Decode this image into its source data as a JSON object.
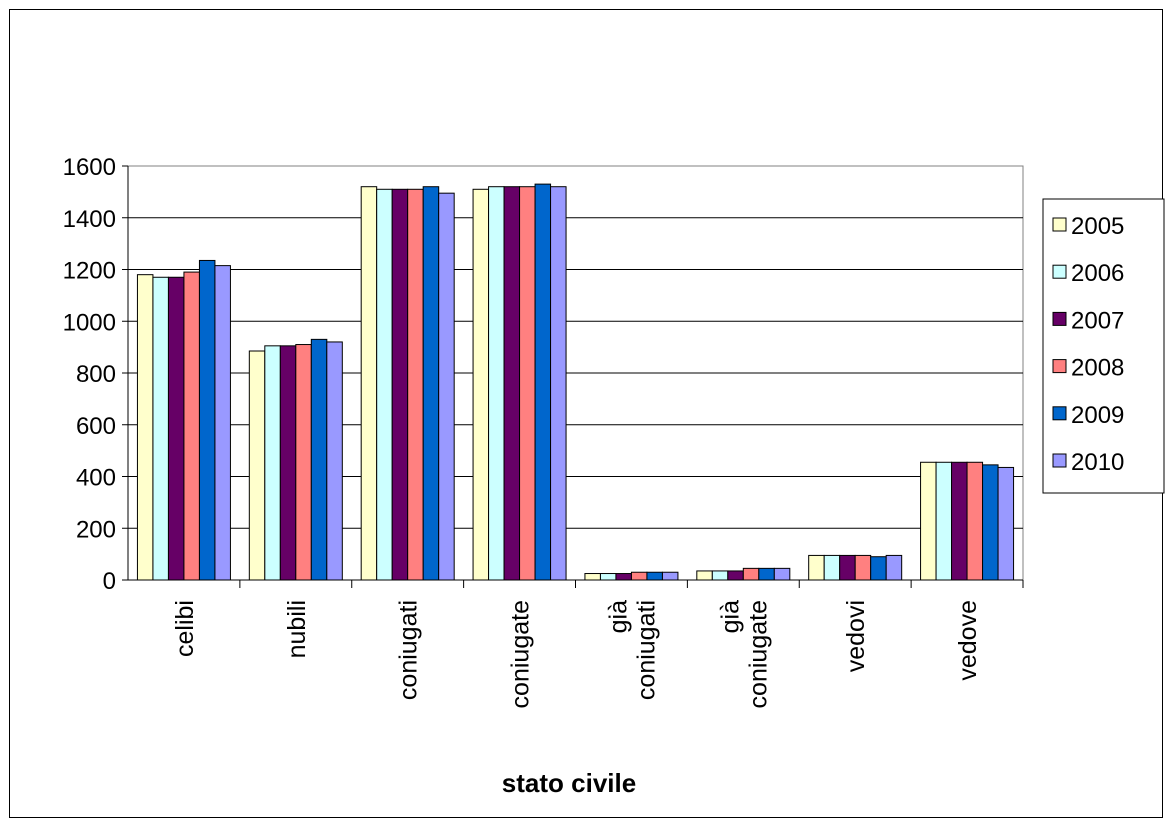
{
  "chart_data": {
    "type": "bar",
    "title": "",
    "xlabel": "stato civile",
    "ylabel": "",
    "ylim": [
      0,
      1600
    ],
    "yticks": [
      "0",
      "200",
      "400",
      "600",
      "800",
      "1000",
      "1200",
      "1400",
      "1600"
    ],
    "grid": true,
    "legend_position": "right",
    "categories": [
      [
        "celibi"
      ],
      [
        "nubili"
      ],
      [
        "coniugati"
      ],
      [
        "coniugate"
      ],
      [
        "già",
        "coniugati"
      ],
      [
        "già",
        "coniugate"
      ],
      [
        "vedovi"
      ],
      [
        "vedove"
      ]
    ],
    "series": [
      {
        "name": "2005",
        "color": "#FFFFCC",
        "values": [
          1180,
          885,
          1520,
          1510,
          25,
          35,
          95,
          455
        ]
      },
      {
        "name": "2006",
        "color": "#CCFFFF",
        "values": [
          1170,
          905,
          1510,
          1520,
          25,
          35,
          95,
          455
        ]
      },
      {
        "name": "2007",
        "color": "#660066",
        "values": [
          1170,
          905,
          1510,
          1520,
          25,
          35,
          95,
          455
        ]
      },
      {
        "name": "2008",
        "color": "#FF8080",
        "values": [
          1190,
          910,
          1510,
          1520,
          30,
          45,
          95,
          455
        ]
      },
      {
        "name": "2009",
        "color": "#0066CC",
        "values": [
          1235,
          930,
          1520,
          1530,
          30,
          45,
          90,
          445
        ]
      },
      {
        "name": "2010",
        "color": "#9999FF",
        "values": [
          1215,
          920,
          1495,
          1520,
          30,
          45,
          95,
          435
        ]
      }
    ]
  }
}
